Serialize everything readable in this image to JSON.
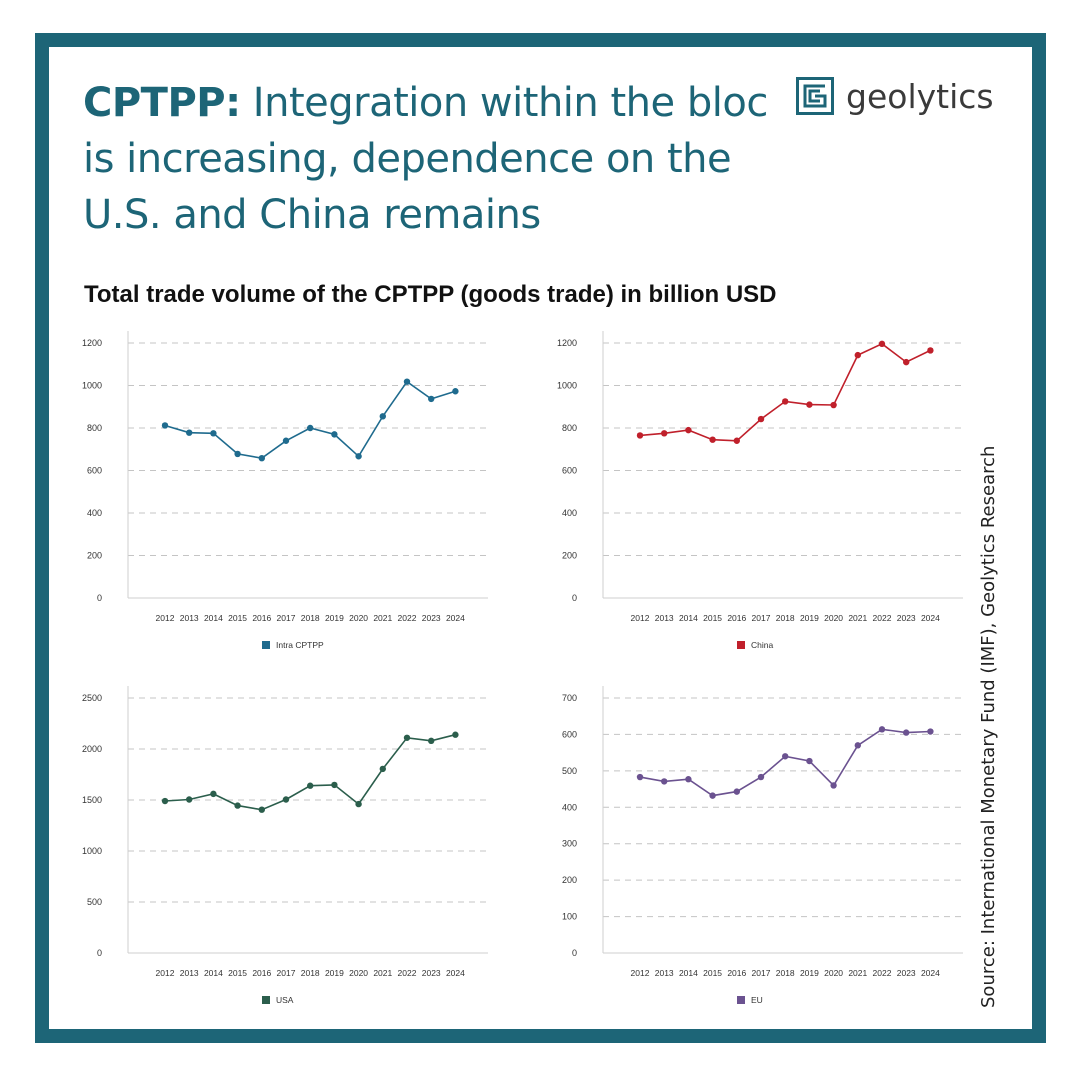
{
  "header": {
    "title_lead": "CPTPP:",
    "title_rest": " Integration within the bloc is increasing, dependence on the U.S. and China remains",
    "logo_text": "geolytics",
    "subtitle": "Total trade volume of the CPTPP (goods trade) in billion USD",
    "source": "Source: International Monetary Fund (IMF), Geolytics Research"
  },
  "colors": {
    "frame": "#1d6577",
    "title": "#1d6577"
  },
  "chart_data": [
    {
      "type": "line",
      "x": [
        "2012",
        "2013",
        "2014",
        "2015",
        "2016",
        "2017",
        "2018",
        "2019",
        "2020",
        "2021",
        "2022",
        "2023",
        "2024"
      ],
      "series": [
        {
          "name": "Intra CPTPP",
          "color": "#1f6b8e",
          "values": [
            812,
            778,
            775,
            678,
            658,
            740,
            800,
            770,
            667,
            855,
            1018,
            937,
            973
          ]
        }
      ],
      "yticks": [
        0,
        200,
        400,
        600,
        800,
        1000,
        1200
      ],
      "ylim": [
        0,
        1200
      ],
      "grid": true,
      "legend": "bottom"
    },
    {
      "type": "line",
      "x": [
        "2012",
        "2013",
        "2014",
        "2015",
        "2016",
        "2017",
        "2018",
        "2019",
        "2020",
        "2021",
        "2022",
        "2023",
        "2024"
      ],
      "series": [
        {
          "name": "China",
          "color": "#c0202b",
          "values": [
            765,
            775,
            790,
            745,
            740,
            842,
            925,
            910,
            908,
            1143,
            1196,
            1110,
            1165
          ]
        }
      ],
      "yticks": [
        0,
        200,
        400,
        600,
        800,
        1000,
        1200
      ],
      "ylim": [
        0,
        1200
      ],
      "grid": true,
      "legend": "bottom"
    },
    {
      "type": "line",
      "x": [
        "2012",
        "2013",
        "2014",
        "2015",
        "2016",
        "2017",
        "2018",
        "2019",
        "2020",
        "2021",
        "2022",
        "2023",
        "2024"
      ],
      "series": [
        {
          "name": "USA",
          "color": "#2b5e4c",
          "values": [
            1490,
            1505,
            1560,
            1445,
            1405,
            1505,
            1640,
            1648,
            1460,
            1805,
            2110,
            2080,
            2140
          ]
        }
      ],
      "yticks": [
        0,
        500,
        1000,
        1500,
        2000,
        2500
      ],
      "ylim": [
        0,
        2500
      ],
      "grid": true,
      "legend": "bottom"
    },
    {
      "type": "line",
      "x": [
        "2012",
        "2013",
        "2014",
        "2015",
        "2016",
        "2017",
        "2018",
        "2019",
        "2020",
        "2021",
        "2022",
        "2023",
        "2024"
      ],
      "series": [
        {
          "name": "EU",
          "color": "#6b5290",
          "values": [
            483,
            471,
            477,
            432,
            443,
            483,
            540,
            527,
            460,
            570,
            614,
            605,
            608
          ]
        }
      ],
      "yticks": [
        0,
        100,
        200,
        300,
        400,
        500,
        600,
        700
      ],
      "ylim": [
        0,
        700
      ],
      "grid": true,
      "legend": "bottom"
    }
  ]
}
